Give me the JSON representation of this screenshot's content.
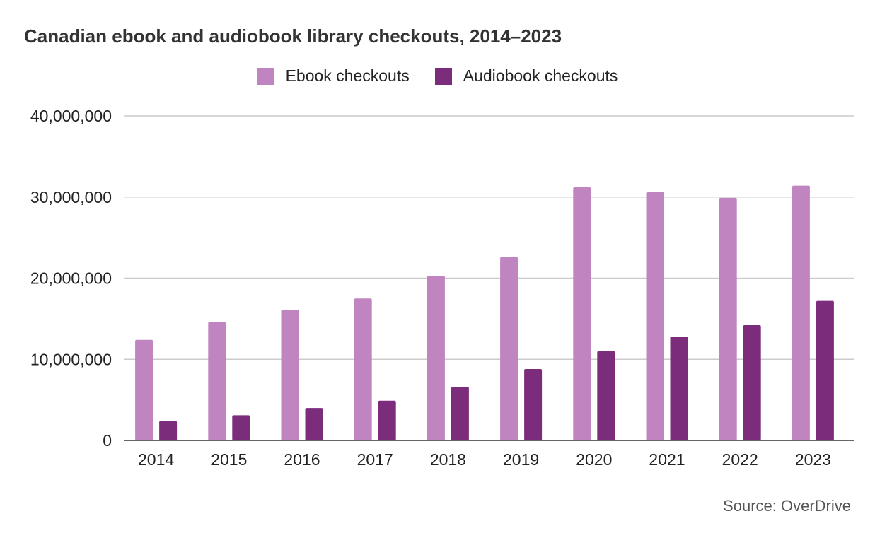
{
  "chart_data": {
    "type": "bar",
    "title": "Canadian ebook and audiobook library checkouts, 2014–2023",
    "categories": [
      "2014",
      "2015",
      "2016",
      "2017",
      "2018",
      "2019",
      "2020",
      "2021",
      "2022",
      "2023"
    ],
    "series": [
      {
        "name": "Ebook checkouts",
        "color": "#c084c0",
        "values": [
          12400000,
          14600000,
          16100000,
          17500000,
          20300000,
          22600000,
          31200000,
          30600000,
          29900000,
          31400000
        ]
      },
      {
        "name": "Audiobook checkouts",
        "color": "#7b2d7b",
        "values": [
          2400000,
          3100000,
          4000000,
          4900000,
          6600000,
          8800000,
          11000000,
          12800000,
          14200000,
          17200000
        ]
      }
    ],
    "ylim": [
      0,
      40000000
    ],
    "yticks": [
      "0",
      "10,000,000",
      "20,000,000",
      "30,000,000",
      "40,000,000"
    ],
    "ytick_values": [
      0,
      10000000,
      20000000,
      30000000,
      40000000
    ],
    "grid": true,
    "legend_position": "top-center",
    "gridline_color": "#cccccc",
    "baseline_color": "#333333",
    "source": "Source: OverDrive"
  }
}
